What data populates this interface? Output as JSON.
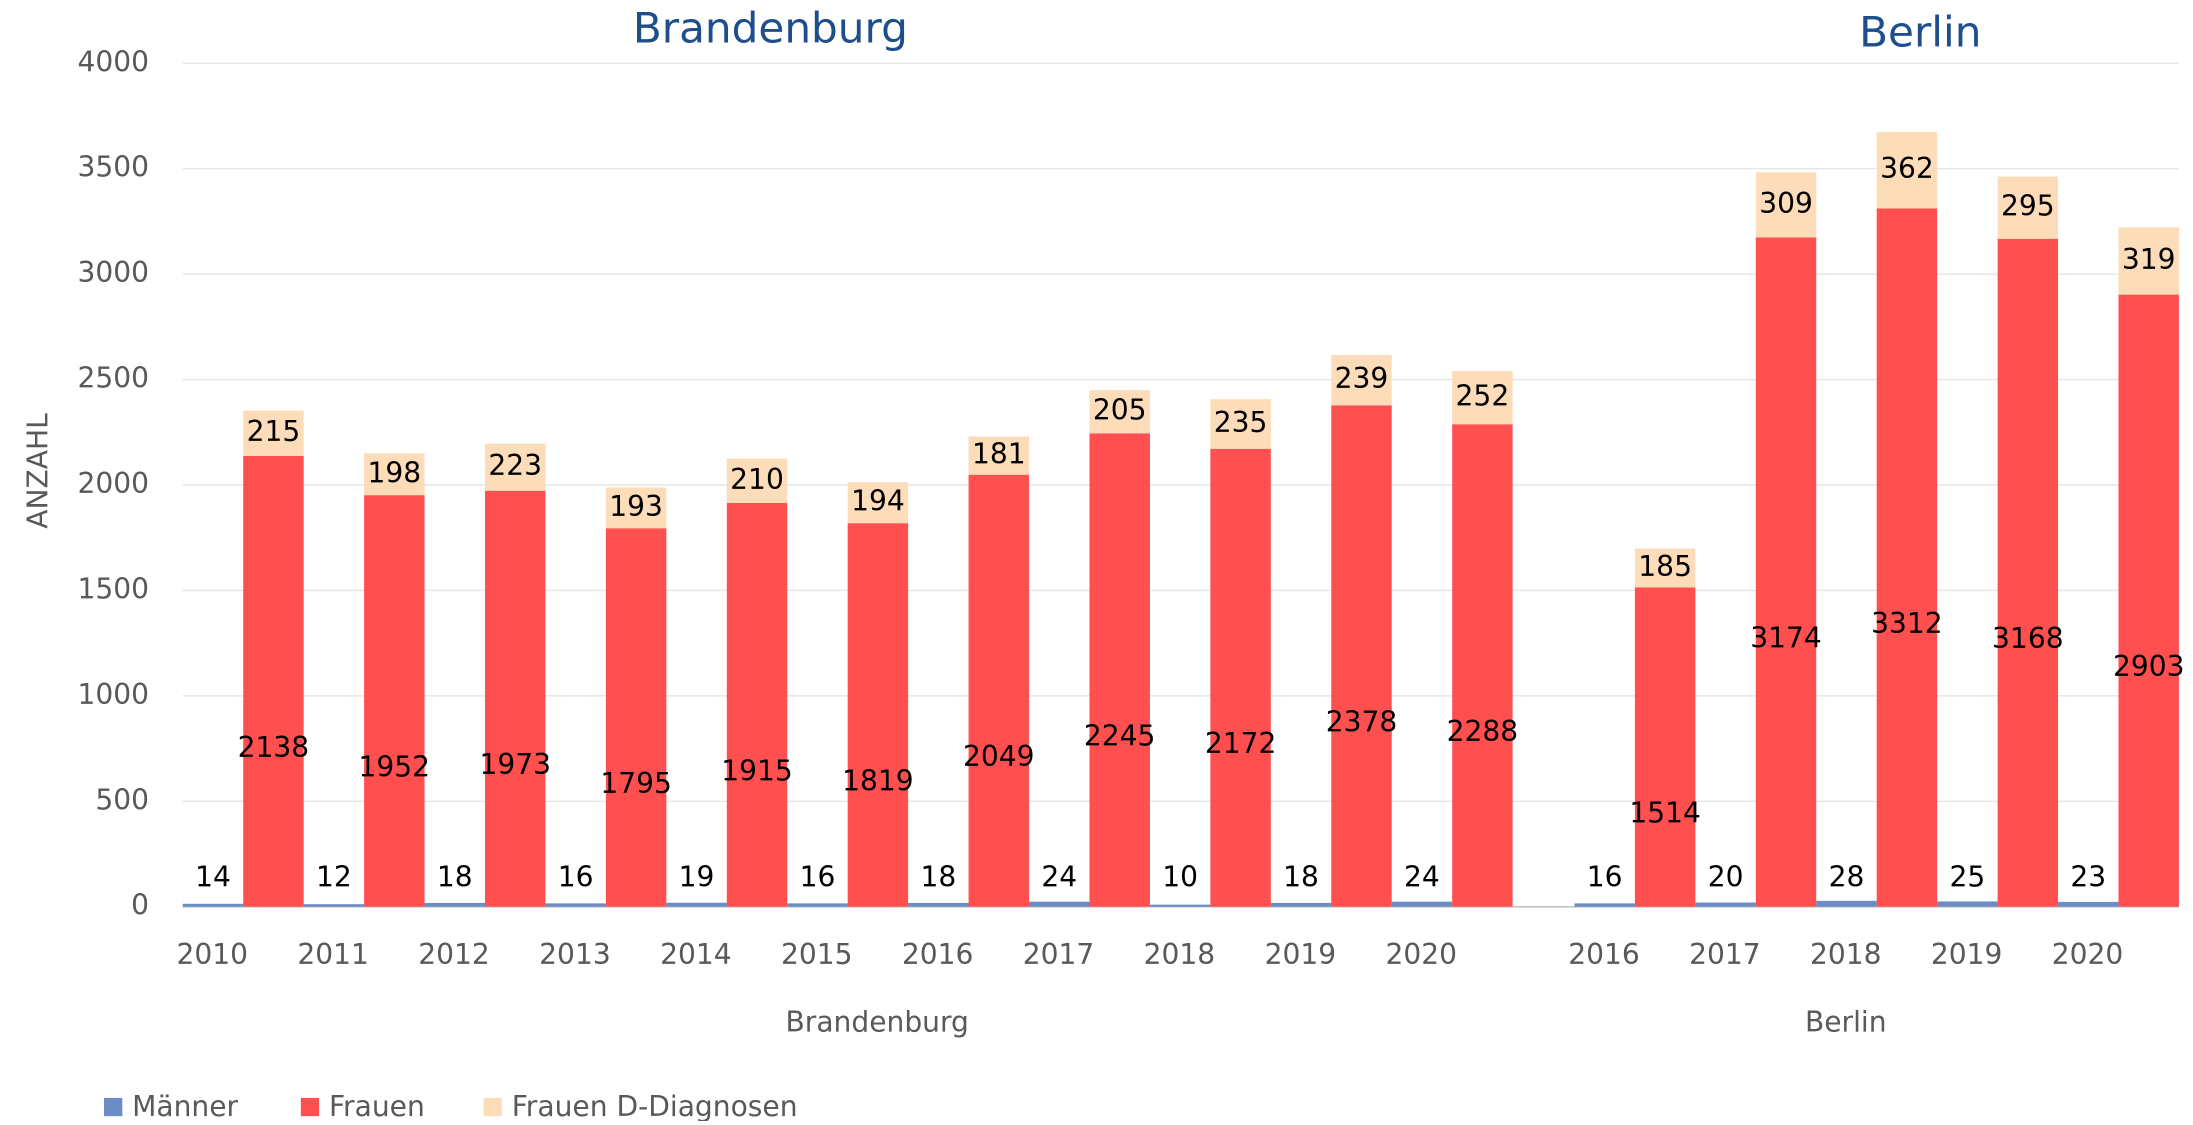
{
  "chart_data": {
    "type": "bar",
    "stacked": true,
    "y_label": "ANZAHL",
    "ylim": [
      0,
      4000
    ],
    "yticks": [
      0,
      500,
      1000,
      1500,
      2000,
      2500,
      3000,
      3500,
      4000
    ],
    "grid": true,
    "legend": "bottom-left",
    "series": [
      {
        "name": "Männer",
        "color": "#6b8cc4"
      },
      {
        "name": "Frauen",
        "color": "#ff4f4f"
      },
      {
        "name": "Frauen D-Diagnosen",
        "color": "#fddcb9"
      }
    ],
    "groups": [
      {
        "title": "Brandenburg",
        "label": "Brandenburg",
        "categories": [
          "2010",
          "2011",
          "2012",
          "2013",
          "2014",
          "2015",
          "2016",
          "2017",
          "2018",
          "2019",
          "2020"
        ],
        "values": [
          [
            14,
            12,
            18,
            16,
            19,
            16,
            18,
            24,
            10,
            18,
            24
          ],
          [
            2138,
            1952,
            1973,
            1795,
            1915,
            1819,
            2049,
            2245,
            2172,
            2378,
            2288
          ],
          [
            215,
            198,
            223,
            193,
            210,
            194,
            181,
            205,
            235,
            239,
            252
          ]
        ]
      },
      {
        "title": "Berlin",
        "label": "Berlin",
        "categories": [
          "2016",
          "2017",
          "2018",
          "2019",
          "2020"
        ],
        "values": [
          [
            16,
            20,
            28,
            25,
            23
          ],
          [
            1514,
            3174,
            3312,
            3168,
            2903
          ],
          [
            185,
            309,
            362,
            295,
            319
          ]
        ]
      }
    ]
  }
}
